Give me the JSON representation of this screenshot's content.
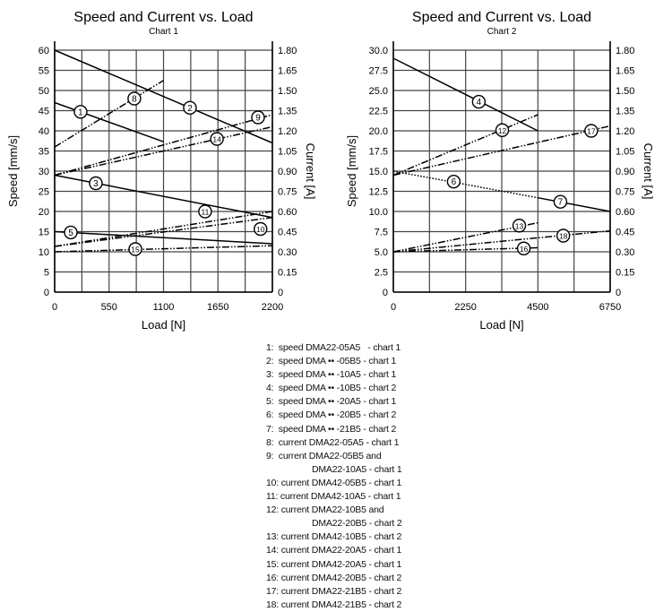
{
  "chart_data": [
    {
      "type": "line",
      "title": "Speed and Current vs. Load",
      "subtitle": "Chart 1",
      "xlabel": "Load [N]",
      "ylabel": "Speed [mm/s]",
      "y2label": "Current [A]",
      "xlim": [
        0,
        2200
      ],
      "ylim": [
        0,
        60
      ],
      "y2lim": [
        0,
        1.8
      ],
      "xticks": [
        "0",
        "550",
        "1100",
        "1650",
        "2200"
      ],
      "xtick_values": [
        0,
        550,
        1100,
        1650,
        2200
      ],
      "x_grid_step": 275,
      "yticks": [
        "0",
        "5",
        "10",
        "15",
        "20",
        "25",
        "30",
        "35",
        "40",
        "45",
        "50",
        "55",
        "60"
      ],
      "y2ticks": [
        "0",
        "0.15",
        "0.30",
        "0.45",
        "0.60",
        "0.75",
        "0.90",
        "1.05",
        "1.20",
        "1.35",
        "1.50",
        "1.65",
        "1.80"
      ],
      "grid": true,
      "series": [
        {
          "label": "1",
          "axis": "speed",
          "style": "solid",
          "points": [
            [
              0,
              47
            ],
            [
              1100,
              37.3
            ]
          ],
          "label_at": [
            262,
            44.7
          ]
        },
        {
          "label": "2",
          "axis": "speed",
          "style": "solid",
          "points": [
            [
              0,
              60
            ],
            [
              2200,
              37
            ]
          ],
          "label_at": [
            1367,
            45.7
          ]
        },
        {
          "label": "3",
          "axis": "speed",
          "style": "solid",
          "points": [
            [
              0,
              29
            ],
            [
              2200,
              18.5
            ]
          ],
          "label_at": [
            416,
            27
          ]
        },
        {
          "label": "5",
          "axis": "speed",
          "style": "solid",
          "points": [
            [
              0,
              15
            ],
            [
              2200,
              12
            ]
          ],
          "label_at": [
            163,
            14.8
          ]
        },
        {
          "label": "8",
          "axis": "current",
          "style": "dashdotdot",
          "points": [
            [
              0,
              1.08
            ],
            [
              1100,
              1.575
            ]
          ],
          "label_at": [
            805,
            1.44
          ]
        },
        {
          "label": "9",
          "axis": "current",
          "style": "dashdotdot",
          "points": [
            [
              0,
              0.87
            ],
            [
              2200,
              1.32
            ]
          ],
          "label_at": [
            2055,
            1.3
          ]
        },
        {
          "label": "14",
          "axis": "current",
          "style": "dashdotdot",
          "points": [
            [
              0,
              0.87
            ],
            [
              2200,
              1.23
            ]
          ],
          "label_at": [
            1640,
            1.14
          ]
        },
        {
          "label": "11",
          "axis": "current",
          "style": "dashdotdot",
          "points": [
            [
              0,
              0.34
            ],
            [
              2200,
              0.6
            ]
          ],
          "label_at": [
            1520,
            0.6
          ]
        },
        {
          "label": "10",
          "axis": "current",
          "style": "dashdotdot",
          "points": [
            [
              0,
              0.34
            ],
            [
              2200,
              0.555
            ]
          ],
          "label_at": [
            2080,
            0.47
          ]
        },
        {
          "label": "15",
          "axis": "current",
          "style": "dashdotdot",
          "points": [
            [
              0,
              0.3
            ],
            [
              2200,
              0.345
            ]
          ],
          "label_at": [
            815,
            0.32
          ]
        }
      ]
    },
    {
      "type": "line",
      "title": "Speed and Current vs. Load",
      "subtitle": "Chart 2",
      "xlabel": "Load [N]",
      "ylabel": "Speed [mm/s]",
      "y2label": "Current [A]",
      "xlim": [
        0,
        6750
      ],
      "ylim": [
        0,
        30
      ],
      "y2lim": [
        0,
        1.8
      ],
      "xticks": [
        "0",
        "2250",
        "4500",
        "6750"
      ],
      "xtick_values": [
        0,
        2250,
        4500,
        6750
      ],
      "x_grid_step": 1125,
      "yticks": [
        "0",
        "2.5",
        "5.0",
        "7.5",
        "10.0",
        "12.5",
        "15.0",
        "17.5",
        "20.0",
        "22.5",
        "25.0",
        "27.5",
        "30.0"
      ],
      "y2ticks": [
        "0",
        "0.15",
        "0.30",
        "0.45",
        "0.60",
        "0.75",
        "0.90",
        "1.05",
        "1.20",
        "1.35",
        "1.50",
        "1.65",
        "1.80"
      ],
      "grid": true,
      "series": [
        {
          "label": "4",
          "axis": "speed",
          "style": "solid",
          "points": [
            [
              0,
              29
            ],
            [
              4500,
              20
            ]
          ],
          "label_at": [
            2660,
            23.6
          ]
        },
        {
          "label": "6",
          "axis": "speed",
          "style": "dotted",
          "points": [
            [
              0,
              15
            ],
            [
              4500,
              11.7
            ]
          ],
          "label_at": [
            1880,
            13.7
          ]
        },
        {
          "label": "7",
          "axis": "speed",
          "style": "solid",
          "points": [
            [
              4500,
              11.7
            ],
            [
              6750,
              10
            ]
          ],
          "label_at": [
            5200,
            11.2
          ]
        },
        {
          "label": "12",
          "axis": "current",
          "style": "dashdotdot",
          "points": [
            [
              0,
              0.87
            ],
            [
              4500,
              1.32
            ]
          ],
          "label_at": [
            3390,
            1.205
          ]
        },
        {
          "label": "17",
          "axis": "current",
          "style": "dashdotdot",
          "points": [
            [
              0,
              0.87
            ],
            [
              6750,
              1.236
            ]
          ],
          "label_at": [
            6160,
            1.2
          ]
        },
        {
          "label": "13",
          "axis": "current",
          "style": "dashdotdot",
          "points": [
            [
              0,
              0.3
            ],
            [
              4500,
              0.516
            ]
          ],
          "label_at": [
            3920,
            0.495
          ]
        },
        {
          "label": "18",
          "axis": "current",
          "style": "dashdotdot",
          "points": [
            [
              0,
              0.3
            ],
            [
              6750,
              0.456
            ]
          ],
          "label_at": [
            5290,
            0.42
          ]
        },
        {
          "label": "16",
          "axis": "current",
          "style": "dashdotdot",
          "points": [
            [
              0,
              0.3
            ],
            [
              4500,
              0.33
            ]
          ],
          "label_at": [
            4060,
            0.325
          ]
        }
      ]
    }
  ],
  "legend": [
    {
      "text": "1:  speed DMA22-05A5   - chart 1"
    },
    {
      "text": "2:  speed DMA •• -05B5 - chart 1"
    },
    {
      "text": "3:  speed DMA •• -10A5 - chart 1"
    },
    {
      "text": "4:  speed DMA •• -10B5 - chart 2"
    },
    {
      "text": "5:  speed DMA •• -20A5 - chart 1"
    },
    {
      "text": "6:  speed DMA •• -20B5 - chart 2"
    },
    {
      "text": "7:  speed DMA •• -21B5 - chart 2"
    },
    {
      "text": "8:  current DMA22-05A5 - chart 1"
    },
    {
      "text": "9:  current DMA22-05B5 and",
      "cont": "DMA22-10A5 - chart 1"
    },
    {
      "text": "10: current DMA42-05B5 - chart 1"
    },
    {
      "text": "11: current DMA42-10A5 - chart 1"
    },
    {
      "text": "12: current DMA22-10B5 and",
      "cont": "DMA22-20B5 - chart 2"
    },
    {
      "text": "13: current DMA42-10B5 - chart 2"
    },
    {
      "text": "14: current DMA22-20A5 - chart 1"
    },
    {
      "text": "15: current DMA42-20A5 - chart 1"
    },
    {
      "text": "16: current DMA42-20B5 - chart 2"
    },
    {
      "text": "17: current DMA22-21B5 - chart 2"
    },
    {
      "text": "18: current DMA42-21B5 - chart 2"
    }
  ]
}
